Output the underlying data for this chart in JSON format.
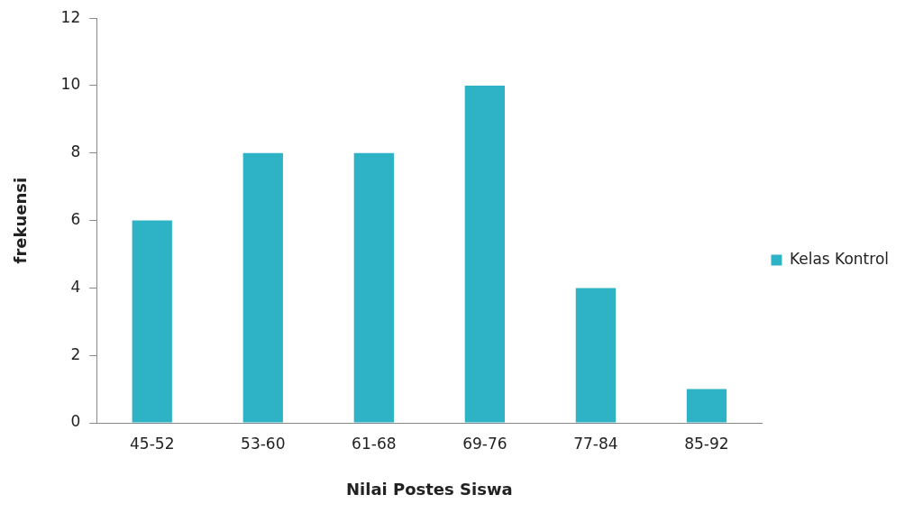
{
  "chart_data": {
    "type": "bar",
    "xlabel": "Nilai Postes Siswa",
    "ylabel": "frekuensi",
    "categories": [
      "45-52",
      "53-60",
      "61-68",
      "69-76",
      "77-84",
      "85-92"
    ],
    "series": [
      {
        "name": "Kelas Kontrol",
        "color": "#2eb3c6",
        "values": [
          6,
          8,
          8,
          10,
          4,
          1
        ]
      }
    ],
    "ylim": [
      0,
      12
    ],
    "yticks": [
      0,
      2,
      4,
      6,
      8,
      10,
      12
    ],
    "grid": false,
    "legend": "right"
  }
}
